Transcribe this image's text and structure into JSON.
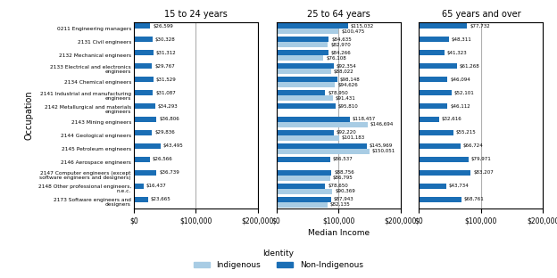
{
  "chart_data": [
    {
      "type": "bar",
      "orientation": "horizontal",
      "title": "15 to 24 years",
      "ylabel": "Occupation",
      "categories": [
        "0211 Engineering managers",
        "2131 Civil engineers",
        "2132 Mechanical engineers",
        "2133 Electrical and electronics engineers",
        "2134 Chemical engineers",
        "2141 Industrial and manufacturing engineers",
        "2142 Metallurgical and materials engineers",
        "2143 Mining engineers",
        "2144 Geological engineers",
        "2145 Petroleum engineers",
        "2146 Aerospace engineers",
        "2147 Computer engineers (except software engineers and designers)",
        "2148 Other professional engineers, n.e.c.",
        "2173 Software engineers and designers"
      ],
      "series": [
        {
          "name": "Indigenous",
          "color": "#a8cce4",
          "values": [
            null,
            null,
            null,
            null,
            null,
            null,
            null,
            null,
            null,
            null,
            null,
            null,
            null,
            null
          ],
          "value_labels": [
            null,
            null,
            null,
            null,
            null,
            null,
            null,
            null,
            null,
            null,
            null,
            null,
            null,
            null
          ]
        },
        {
          "name": "Non-Indigenous",
          "color": "#1a6eb5",
          "values": [
            26599,
            30328,
            31312,
            29767,
            31529,
            31087,
            34293,
            36806,
            29836,
            43495,
            26566,
            36739,
            16437,
            23665
          ],
          "value_labels": [
            "$26,599",
            "$30,328",
            "$31,312",
            "$29,767",
            "$31,529",
            "$31,087",
            "$34,293",
            "$36,806",
            "$29,836",
            "$43,495",
            "$26,566",
            "$36,739",
            "$16,437",
            "$23,665"
          ]
        }
      ],
      "xlim": [
        0,
        200000
      ],
      "xticks": [
        {
          "value": 0,
          "label": "$0"
        },
        {
          "value": 100000,
          "label": "$100,000"
        },
        {
          "value": 200000,
          "label": "$200,000"
        }
      ],
      "grid": true,
      "data_labels": true
    },
    {
      "type": "bar",
      "orientation": "horizontal",
      "title": "25 to 64 years",
      "xlabel": "Median Income",
      "categories": [
        "0211 Engineering managers",
        "2131 Civil engineers",
        "2132 Mechanical engineers",
        "2133 Electrical and electronics engineers",
        "2134 Chemical engineers",
        "2141 Industrial and manufacturing engineers",
        "2142 Metallurgical and materials engineers",
        "2143 Mining engineers",
        "2144 Geological engineers",
        "2145 Petroleum engineers",
        "2146 Aerospace engineers",
        "2147 Computer engineers (except software engineers and designers)",
        "2148 Other professional engineers, n.e.c.",
        "2173 Software engineers and designers"
      ],
      "series": [
        {
          "name": "Indigenous",
          "color": "#a8cce4",
          "values": [
            100475,
            82970,
            76108,
            88022,
            94626,
            91431,
            null,
            146694,
            101183,
            150051,
            null,
            86795,
            90369,
            82135
          ],
          "value_labels": [
            "$100,475",
            "$82,970",
            "$76,108",
            "$88,022",
            "$94,626",
            "$91,431",
            null,
            "$146,694",
            "$101,183",
            "$150,051",
            null,
            "$86,795",
            "$90,369",
            "$82,135"
          ]
        },
        {
          "name": "Non-Indigenous",
          "color": "#1a6eb5",
          "values": [
            115032,
            84635,
            84266,
            92354,
            98148,
            78950,
            95810,
            118457,
            92220,
            145969,
            86537,
            88756,
            78650,
            87943
          ],
          "value_labels": [
            "$115,032",
            "$84,635",
            "$84,266",
            "$92,354",
            "$98,148",
            "$78,950",
            "$95,810",
            "$118,457",
            "$92,220",
            "$145,969",
            "$86,537",
            "$88,756",
            "$78,650",
            "$87,943"
          ]
        }
      ],
      "xlim": [
        0,
        200000
      ],
      "xticks": [
        {
          "value": 0,
          "label": "$0"
        },
        {
          "value": 100000,
          "label": "$100,000"
        },
        {
          "value": 200000,
          "label": "$200,000"
        }
      ],
      "grid": true,
      "data_labels": true,
      "tick_labels": "x",
      "legend": "lower center",
      "legend_title": "Identity"
    },
    {
      "type": "bar",
      "orientation": "horizontal",
      "title": "65 years and over",
      "categories": [
        "0211 Engineering managers",
        "2131 Civil engineers",
        "2132 Mechanical engineers",
        "2133 Electrical and electronics engineers",
        "2134 Chemical engineers",
        "2141 Industrial and manufacturing engineers",
        "2142 Metallurgical and materials engineers",
        "2143 Mining engineers",
        "2144 Geological engineers",
        "2145 Petroleum engineers",
        "2146 Aerospace engineers",
        "2147 Computer engineers (except software engineers and designers)",
        "2148 Other professional engineers, n.e.c.",
        "2173 Software engineers and designers"
      ],
      "series": [
        {
          "name": "Indigenous",
          "color": "#a8cce4",
          "values": [
            null,
            null,
            null,
            null,
            null,
            null,
            null,
            null,
            null,
            null,
            null,
            null,
            null,
            null
          ],
          "value_labels": [
            null,
            null,
            null,
            null,
            null,
            null,
            null,
            null,
            null,
            null,
            null,
            null,
            null,
            null
          ]
        },
        {
          "name": "Non-Indigenous",
          "color": "#1a6eb5",
          "values": [
            77732,
            48311,
            41323,
            61268,
            46094,
            52101,
            46112,
            32616,
            55215,
            66724,
            79971,
            83207,
            43734,
            68761
          ],
          "value_labels": [
            "$77,732",
            "$48,311",
            "$41,323",
            "$61,268",
            "$46,094",
            "$52,101",
            "$46,112",
            "$32,616",
            "$55,215",
            "$66,724",
            "$79,971",
            "$83,207",
            "$43,734",
            "$68,761"
          ]
        }
      ],
      "xlim": [
        0,
        200000
      ],
      "xticks": [
        {
          "value": 0,
          "label": "$0"
        },
        {
          "value": 100000,
          "label": "$100,000"
        },
        {
          "value": 200000,
          "label": "$200,000"
        }
      ],
      "grid": true,
      "data_labels": true,
      "tick_labels": "x"
    }
  ]
}
